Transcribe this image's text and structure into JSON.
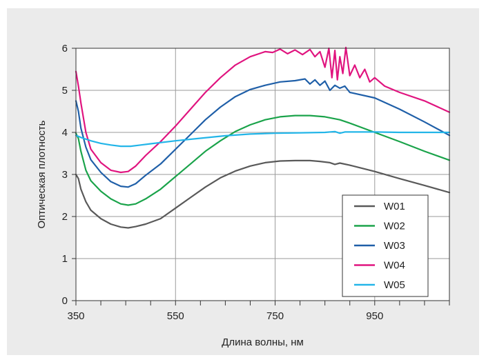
{
  "chart_data": {
    "type": "line",
    "title": "",
    "xlabel": "Длина волны, нм",
    "ylabel": "Оптическая плотность",
    "xlim": [
      350,
      1100
    ],
    "ylim": [
      0,
      6
    ],
    "xticks": [
      "350",
      "550",
      "750",
      "950"
    ],
    "yticks": [
      "0",
      "1",
      "2",
      "3",
      "4",
      "5",
      "6"
    ],
    "grid": true,
    "legend_position": "bottom-right",
    "series": [
      {
        "name": "W01",
        "color": "#595959",
        "x": [
          350,
          355,
          360,
          370,
          380,
          400,
          420,
          440,
          455,
          470,
          490,
          520,
          550,
          580,
          610,
          640,
          670,
          700,
          730,
          760,
          790,
          820,
          840,
          860,
          870,
          880,
          900,
          950,
          1000,
          1050,
          1100
        ],
        "y": [
          3.0,
          2.9,
          2.65,
          2.35,
          2.15,
          1.95,
          1.82,
          1.75,
          1.73,
          1.76,
          1.82,
          1.95,
          2.2,
          2.45,
          2.7,
          2.92,
          3.08,
          3.2,
          3.28,
          3.32,
          3.33,
          3.33,
          3.31,
          3.28,
          3.24,
          3.27,
          3.22,
          3.07,
          2.9,
          2.74,
          2.57
        ]
      },
      {
        "name": "W02",
        "color": "#1aa34a",
        "x": [
          350,
          355,
          360,
          370,
          380,
          400,
          420,
          440,
          455,
          470,
          490,
          520,
          550,
          580,
          610,
          640,
          670,
          700,
          730,
          760,
          790,
          820,
          850,
          880,
          900,
          950,
          1000,
          1050,
          1100
        ],
        "y": [
          3.98,
          3.85,
          3.55,
          3.1,
          2.85,
          2.6,
          2.42,
          2.3,
          2.27,
          2.3,
          2.42,
          2.65,
          2.95,
          3.25,
          3.55,
          3.8,
          4.02,
          4.18,
          4.3,
          4.37,
          4.4,
          4.4,
          4.37,
          4.3,
          4.22,
          4.0,
          3.78,
          3.55,
          3.34
        ]
      },
      {
        "name": "W03",
        "color": "#1f5fa8",
        "x": [
          350,
          355,
          360,
          370,
          380,
          400,
          420,
          440,
          455,
          470,
          490,
          520,
          550,
          580,
          610,
          640,
          670,
          700,
          730,
          760,
          790,
          810,
          820,
          830,
          840,
          850,
          860,
          870,
          880,
          890,
          900,
          950,
          1000,
          1050,
          1100
        ],
        "y": [
          4.75,
          4.5,
          4.1,
          3.65,
          3.35,
          3.05,
          2.83,
          2.72,
          2.7,
          2.78,
          2.98,
          3.25,
          3.6,
          3.95,
          4.3,
          4.6,
          4.85,
          5.02,
          5.12,
          5.2,
          5.23,
          5.27,
          5.15,
          5.25,
          5.12,
          5.22,
          5.0,
          5.12,
          5.05,
          5.1,
          4.95,
          4.82,
          4.55,
          4.25,
          3.93
        ]
      },
      {
        "name": "W04",
        "color": "#e0147f",
        "x": [
          350,
          355,
          360,
          370,
          380,
          400,
          420,
          440,
          455,
          470,
          490,
          520,
          550,
          580,
          610,
          640,
          670,
          700,
          730,
          745,
          760,
          775,
          790,
          805,
          820,
          830,
          840,
          850,
          858,
          864,
          870,
          875,
          880,
          886,
          892,
          900,
          910,
          920,
          930,
          940,
          950,
          970,
          1000,
          1050,
          1100
        ],
        "y": [
          5.45,
          5.1,
          4.7,
          4.0,
          3.6,
          3.28,
          3.1,
          3.05,
          3.07,
          3.2,
          3.45,
          3.78,
          4.15,
          4.55,
          4.95,
          5.3,
          5.6,
          5.8,
          5.92,
          5.9,
          5.98,
          5.87,
          5.96,
          5.85,
          5.97,
          5.8,
          5.92,
          5.55,
          6.0,
          5.3,
          5.95,
          5.25,
          5.8,
          5.4,
          6.02,
          5.35,
          5.6,
          5.3,
          5.5,
          5.2,
          5.3,
          5.1,
          4.95,
          4.75,
          4.48
        ]
      },
      {
        "name": "W05",
        "color": "#22b5e8",
        "x": [
          350,
          360,
          380,
          400,
          420,
          440,
          460,
          480,
          500,
          550,
          600,
          650,
          700,
          750,
          800,
          850,
          870,
          880,
          890,
          900,
          950,
          1000,
          1050,
          1100
        ],
        "y": [
          3.93,
          3.88,
          3.8,
          3.74,
          3.7,
          3.67,
          3.67,
          3.7,
          3.73,
          3.8,
          3.86,
          3.92,
          3.96,
          3.98,
          3.99,
          4.0,
          4.02,
          3.98,
          4.01,
          4.01,
          4.01,
          4.0,
          4.0,
          4.0
        ]
      }
    ]
  }
}
